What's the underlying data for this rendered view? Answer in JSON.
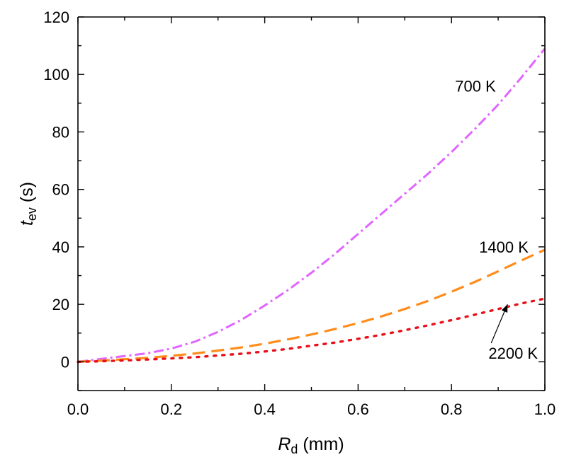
{
  "chart_data": {
    "type": "line",
    "title": "",
    "xlabel": {
      "main": "R",
      "sub": "d",
      "unit": " (mm)"
    },
    "ylabel": {
      "main": "t",
      "sub": "ev",
      "unit": " (s)"
    },
    "xlim": [
      0.0,
      1.0
    ],
    "ylim": [
      -10,
      120
    ],
    "xticks": [
      0.0,
      0.2,
      0.4,
      0.6,
      0.8,
      1.0
    ],
    "xtick_labels": [
      "0.0",
      "0.2",
      "0.4",
      "0.6",
      "0.8",
      "1.0"
    ],
    "yticks": [
      0,
      20,
      40,
      60,
      80,
      100,
      120
    ],
    "ytick_labels": [
      "0",
      "20",
      "40",
      "60",
      "80",
      "100",
      "120"
    ],
    "grid": false,
    "x": [
      0.0,
      0.05,
      0.1,
      0.15,
      0.2,
      0.25,
      0.3,
      0.35,
      0.4,
      0.45,
      0.5,
      0.55,
      0.6,
      0.65,
      0.7,
      0.75,
      0.8,
      0.85,
      0.9,
      0.95,
      1.0
    ],
    "series": [
      {
        "name": "700 K",
        "color": "#e066ff",
        "dash": "dashdot",
        "values": [
          0.0,
          1.0,
          2.0,
          3.0,
          4.6,
          7.0,
          10.4,
          14.6,
          19.6,
          25.0,
          31.0,
          37.5,
          44.5,
          51.5,
          58.5,
          65.5,
          73.0,
          81.0,
          89.5,
          99.0,
          109.0
        ]
      },
      {
        "name": "1400 K",
        "color": "#ff8c1a",
        "dash": "dash",
        "values": [
          0.0,
          0.4,
          0.9,
          1.4,
          2.1,
          2.9,
          3.9,
          5.0,
          6.3,
          7.8,
          9.5,
          11.4,
          13.5,
          15.8,
          18.4,
          21.2,
          24.4,
          27.8,
          31.5,
          35.3,
          39.0
        ]
      },
      {
        "name": "2200 K",
        "color": "#e8101a",
        "dash": "dot",
        "values": [
          0.0,
          0.2,
          0.5,
          0.8,
          1.2,
          1.6,
          2.2,
          2.8,
          3.6,
          4.5,
          5.6,
          6.7,
          8.0,
          9.4,
          11.0,
          12.7,
          14.5,
          16.4,
          18.4,
          20.3,
          22.0
        ]
      }
    ],
    "annotations": [
      {
        "text": "700 K",
        "series": "700 K"
      },
      {
        "text": "1400 K",
        "series": "1400 K"
      },
      {
        "text": "2200 K",
        "series": "2200 K",
        "arrow_to": {
          "x": 0.92,
          "y": 20.0
        }
      }
    ]
  }
}
